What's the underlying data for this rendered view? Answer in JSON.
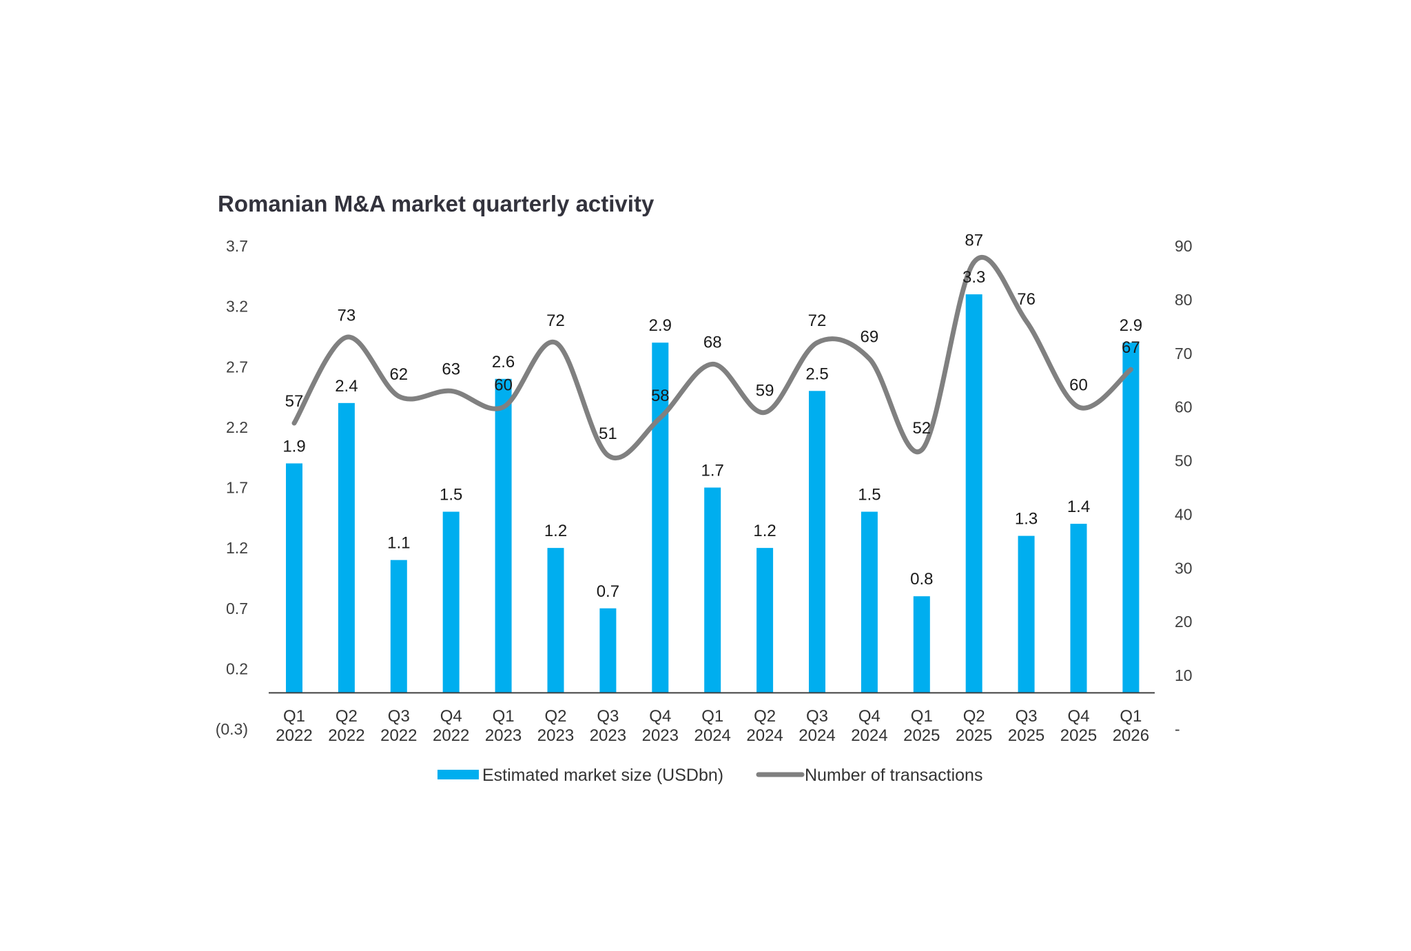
{
  "chart_data": {
    "type": "bar+line",
    "title": "Romanian M&A market quarterly activity",
    "categories": [
      [
        "Q1",
        "2022"
      ],
      [
        "Q2",
        "2022"
      ],
      [
        "Q3",
        "2022"
      ],
      [
        "Q4",
        "2022"
      ],
      [
        "Q1",
        "2023"
      ],
      [
        "Q2",
        "2023"
      ],
      [
        "Q3",
        "2023"
      ],
      [
        "Q4",
        "2023"
      ],
      [
        "Q1",
        "2024"
      ],
      [
        "Q2",
        "2024"
      ],
      [
        "Q3",
        "2024"
      ],
      [
        "Q4",
        "2024"
      ],
      [
        "Q1",
        "2025"
      ],
      [
        "Q2",
        "2025"
      ],
      [
        "Q3",
        "2025"
      ],
      [
        "Q4",
        "2025"
      ],
      [
        "Q1",
        "2026"
      ]
    ],
    "series": [
      {
        "name": "Estimated market size (USDbn)",
        "type": "bar",
        "axis": "left",
        "color": "#00aeef",
        "values": [
          1.9,
          2.4,
          1.1,
          1.5,
          2.6,
          1.2,
          0.7,
          2.9,
          1.7,
          1.2,
          2.5,
          1.5,
          0.8,
          3.3,
          1.3,
          1.4,
          2.9
        ],
        "labels": [
          "1.9",
          "2.4",
          "1.1",
          "1.5",
          "2.6",
          "1.2",
          "0.7",
          "2.9",
          "1.7",
          "1.2",
          "2.5",
          "1.5",
          "0.8",
          "3.3",
          "1.3",
          "1.4",
          "2.9"
        ]
      },
      {
        "name": "Number of transactions",
        "type": "line",
        "smooth": true,
        "axis": "right",
        "color": "#808080",
        "values": [
          57,
          73,
          62,
          63,
          60,
          72,
          51,
          58,
          68,
          59,
          72,
          69,
          52,
          87,
          76,
          60,
          67
        ],
        "labels": [
          "57",
          "73",
          "62",
          "63",
          "60",
          "72",
          "51",
          "58",
          "68",
          "59",
          "72",
          "69",
          "52",
          "87",
          "76",
          "60",
          "67"
        ]
      }
    ],
    "left_axis": {
      "ylim": [
        -0.3,
        3.7
      ],
      "ticks": [
        -0.3,
        0.2,
        0.7,
        1.2,
        1.7,
        2.2,
        2.7,
        3.2,
        3.7
      ],
      "tick_labels": [
        "(0.3)",
        "0.2",
        "0.7",
        "1.2",
        "1.7",
        "2.2",
        "2.7",
        "3.2",
        "3.7"
      ],
      "baseline": 0
    },
    "right_axis": {
      "ylim": [
        0,
        90
      ],
      "ticks": [
        0,
        10,
        20,
        30,
        40,
        50,
        60,
        70,
        80,
        90
      ],
      "tick_labels": [
        "-",
        "10",
        "20",
        "30",
        "40",
        "50",
        "60",
        "70",
        "80",
        "90"
      ]
    },
    "grid": false,
    "legend": {
      "position": "bottom-center",
      "items": [
        "Estimated market size (USDbn)",
        "Number of transactions"
      ]
    }
  }
}
